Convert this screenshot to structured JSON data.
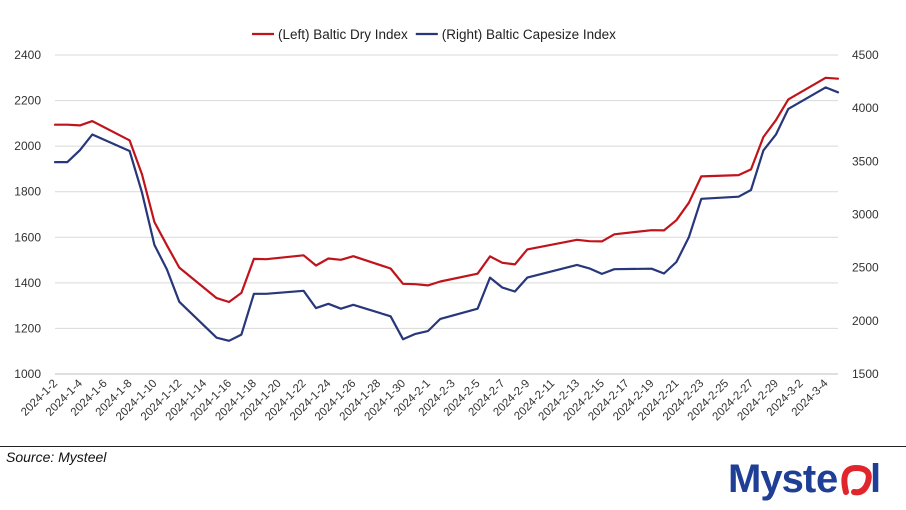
{
  "chart_data": {
    "type": "line",
    "title": "",
    "legend_position": "top-center",
    "grid": true,
    "y_left": {
      "min": 1000,
      "max": 2400,
      "ticks": [
        1000,
        1200,
        1400,
        1600,
        1800,
        2000,
        2200,
        2400
      ]
    },
    "y_right": {
      "min": 1500,
      "max": 4500,
      "ticks": [
        1500,
        2000,
        2500,
        3000,
        3500,
        4000,
        4500
      ]
    },
    "x": [
      "2024-1-2",
      "2024-1-3",
      "2024-1-4",
      "2024-1-5",
      "2024-1-8",
      "2024-1-9",
      "2024-1-10",
      "2024-1-11",
      "2024-1-12",
      "2024-1-15",
      "2024-1-16",
      "2024-1-17",
      "2024-1-18",
      "2024-1-19",
      "2024-1-22",
      "2024-1-23",
      "2024-1-24",
      "2024-1-25",
      "2024-1-26",
      "2024-1-29",
      "2024-1-30",
      "2024-1-31",
      "2024-2-1",
      "2024-2-2",
      "2024-2-5",
      "2024-2-6",
      "2024-2-7",
      "2024-2-8",
      "2024-2-9",
      "2024-2-13",
      "2024-2-14",
      "2024-2-15",
      "2024-2-16",
      "2024-2-19",
      "2024-2-20",
      "2024-2-21",
      "2024-2-22",
      "2024-2-23",
      "2024-2-26",
      "2024-2-27",
      "2024-2-28",
      "2024-2-29",
      "2024-3-1",
      "2024-3-4",
      "2024-3-5"
    ],
    "x_tick_labels": [
      "2024-1-2",
      "2024-1-4",
      "2024-1-6",
      "2024-1-8",
      "2024-1-10",
      "2024-1-12",
      "2024-1-14",
      "2024-1-16",
      "2024-1-18",
      "2024-1-20",
      "2024-1-22",
      "2024-1-24",
      "2024-1-26",
      "2024-1-28",
      "2024-1-30",
      "2024-2-1",
      "2024-2-3",
      "2024-2-5",
      "2024-2-7",
      "2024-2-9",
      "2024-2-11",
      "2024-2-13",
      "2024-2-15",
      "2024-2-17",
      "2024-2-19",
      "2024-2-21",
      "2024-2-23",
      "2024-2-25",
      "2024-2-27",
      "2024-2-29",
      "2024-3-2",
      "2024-3-4"
    ],
    "series": [
      {
        "name": "(Left) Baltic Dry Index",
        "axis": "left",
        "color": "#c0141c",
        "values": [
          2094,
          2094,
          2091,
          2110,
          2025,
          1876,
          1667,
          1565,
          1467,
          1333,
          1316,
          1356,
          1505,
          1504,
          1521,
          1476,
          1507,
          1501,
          1517,
          1463,
          1396,
          1394,
          1389,
          1406,
          1440,
          1516,
          1488,
          1481,
          1547,
          1589,
          1583,
          1582,
          1613,
          1631,
          1630,
          1675,
          1752,
          1867,
          1873,
          1898,
          2040,
          2114,
          2205,
          2300,
          2296
        ]
      },
      {
        "name": "(Right) Baltic Capesize Index",
        "axis": "right",
        "color": "#27377a",
        "values": [
          3493,
          3493,
          3605,
          3752,
          3597,
          3206,
          2714,
          2484,
          2179,
          1841,
          1812,
          1871,
          2254,
          2254,
          2282,
          2120,
          2160,
          2114,
          2151,
          2043,
          1827,
          1877,
          1903,
          2018,
          2114,
          2407,
          2313,
          2276,
          2407,
          2526,
          2493,
          2441,
          2486,
          2490,
          2445,
          2553,
          2787,
          3148,
          3167,
          3230,
          3603,
          3751,
          3993,
          4195,
          4149
        ]
      }
    ]
  },
  "footer": {
    "source": "Source: Mysteel",
    "logo_text": "Mysteel"
  }
}
